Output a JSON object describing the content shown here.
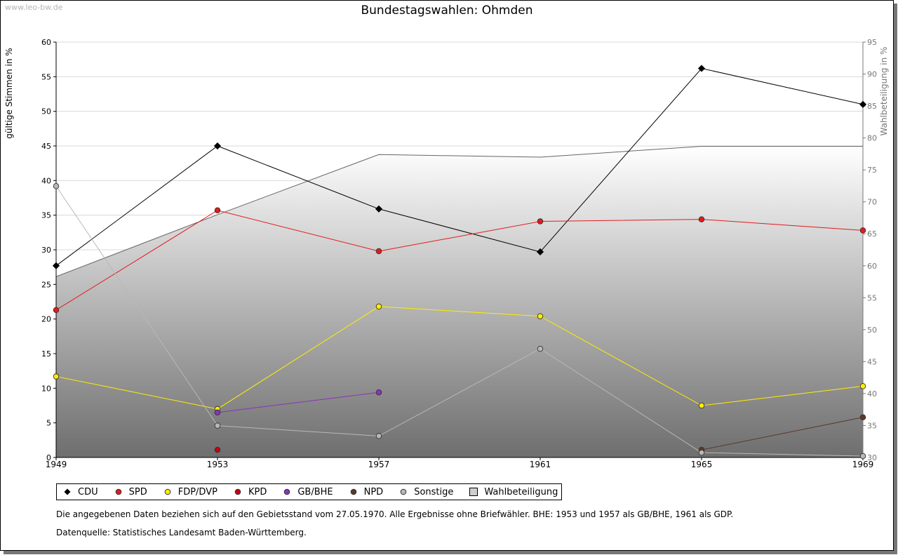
{
  "watermark": "www.leo-bw.de",
  "note": "Die angegebenen Daten beziehen sich auf den Gebietsstand vom 27.05.1970. Alle Ergebnisse ohne Briefwähler. BHE: 1953 und 1957 als GB/BHE, 1961 als GDP.",
  "source": "Datenquelle: Statistisches Landesamt Baden-Württemberg.",
  "chart_data": {
    "type": "line",
    "title": "Bundestagswahlen: Ohmden",
    "ylabel": "gültige Stimmen in %",
    "y2label": "Wahlbeteiligung in %",
    "categories": [
      "1949",
      "1953",
      "1957",
      "1961",
      "1965",
      "1969"
    ],
    "ylim": [
      0,
      60
    ],
    "y2lim": [
      30,
      95
    ],
    "yticks": [
      0,
      5,
      10,
      15,
      20,
      25,
      30,
      35,
      40,
      45,
      50,
      55,
      60
    ],
    "y2ticks": [
      30,
      35,
      40,
      45,
      50,
      55,
      60,
      65,
      70,
      75,
      80,
      85,
      90,
      95
    ],
    "grid": true,
    "legend_position": "bottom",
    "turnout": {
      "name": "Wahlbeteiligung",
      "axis": "right",
      "values": [
        58.3,
        68.0,
        77.4,
        77.0,
        78.7,
        78.7
      ]
    },
    "series": [
      {
        "name": "CDU",
        "color": "#000000",
        "values": [
          27.7,
          45.0,
          35.9,
          29.7,
          56.2,
          51.0
        ]
      },
      {
        "name": "SPD",
        "color": "#e31a1c",
        "values": [
          21.3,
          35.7,
          29.8,
          34.1,
          34.4,
          32.8
        ]
      },
      {
        "name": "FDP/DVP",
        "color": "#ffee00",
        "values": [
          11.7,
          7.0,
          21.8,
          20.4,
          7.5,
          10.3
        ]
      },
      {
        "name": "KPD",
        "color": "#c4000f",
        "values": [
          null,
          1.1,
          null,
          null,
          null,
          null
        ]
      },
      {
        "name": "GB/BHE",
        "color": "#8833bb",
        "values": [
          null,
          6.5,
          9.4,
          null,
          null,
          null
        ]
      },
      {
        "name": "NPD",
        "color": "#5a3a2a",
        "values": [
          null,
          null,
          null,
          null,
          1.1,
          5.8
        ]
      },
      {
        "name": "Sonstige",
        "color": "#b8b8b8",
        "values": [
          39.2,
          4.6,
          3.1,
          15.7,
          0.7,
          0.2
        ]
      }
    ]
  }
}
